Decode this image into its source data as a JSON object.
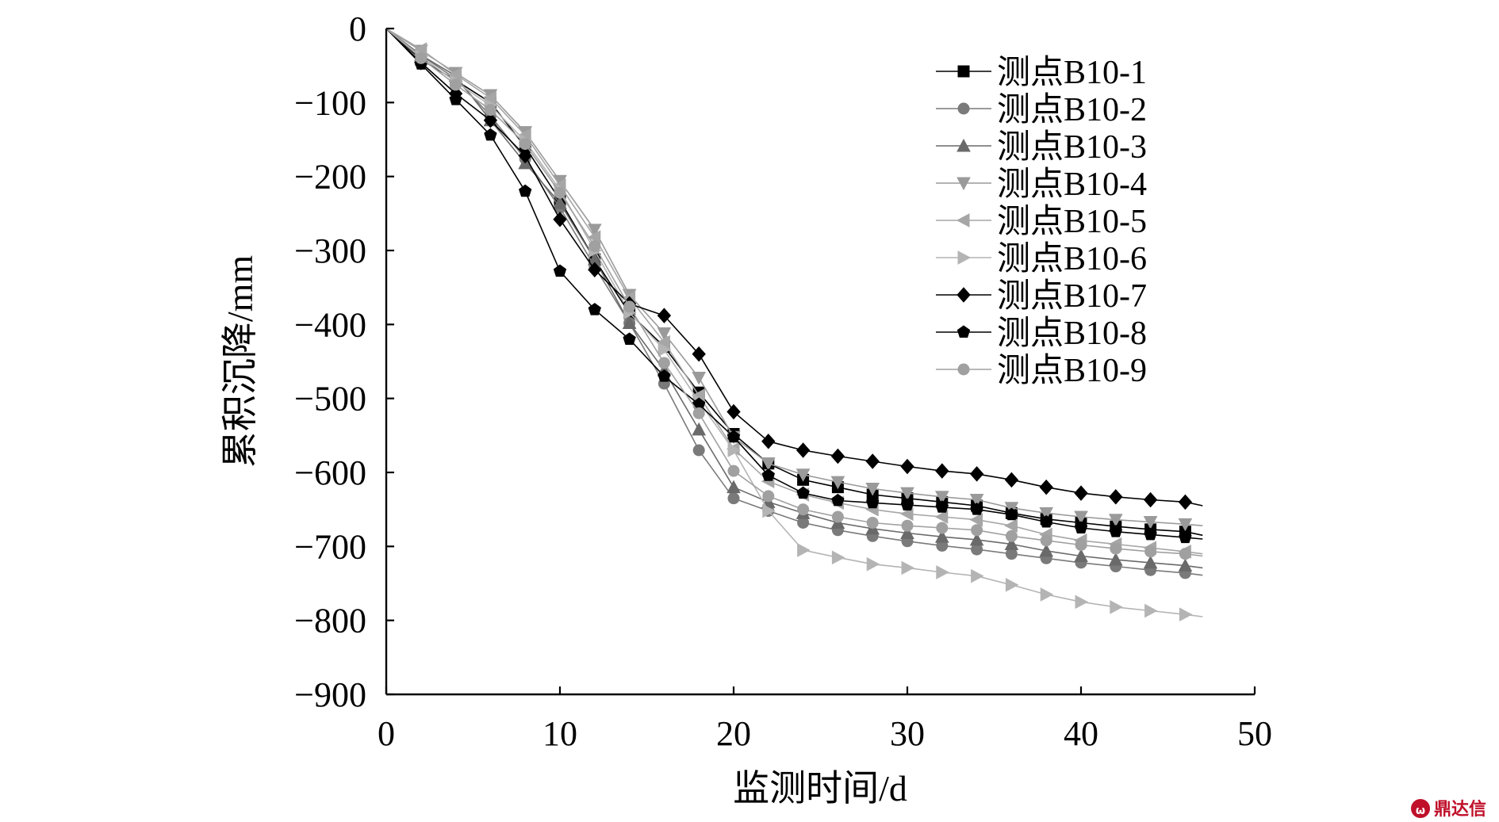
{
  "chart_data": {
    "type": "line",
    "xlabel": "监测时间/d",
    "ylabel": "累积沉降/mm",
    "xlim": [
      0,
      50
    ],
    "ylim": [
      -900,
      0
    ],
    "xticks": [
      "0",
      "10",
      "20",
      "30",
      "40",
      "50"
    ],
    "yticks": [
      "0",
      "−100",
      "−200",
      "−300",
      "−400",
      "−500",
      "−600",
      "−700",
      "−800",
      "−900"
    ],
    "grid": false,
    "legend_position": "top-right",
    "x": [
      0,
      2,
      4,
      6,
      8,
      10,
      12,
      14,
      16,
      18,
      20,
      22,
      24,
      26,
      28,
      30,
      32,
      34,
      36,
      38,
      40,
      42,
      44,
      46,
      47
    ],
    "series": [
      {
        "name": "测点B10-1",
        "marker": "square",
        "color": "#000000",
        "values": [
          0,
          -42,
          -70,
          -100,
          -160,
          -232,
          -312,
          -385,
          -430,
          -492,
          -548,
          -588,
          -610,
          -620,
          -630,
          -635,
          -640,
          -645,
          -655,
          -663,
          -668,
          -673,
          -677,
          -680,
          -685
        ]
      },
      {
        "name": "测点B10-2",
        "marker": "circle",
        "color": "#7a7a7a",
        "values": [
          0,
          -36,
          -68,
          -118,
          -176,
          -242,
          -322,
          -398,
          -480,
          -570,
          -635,
          -652,
          -668,
          -678,
          -686,
          -693,
          -699,
          -704,
          -710,
          -716,
          -722,
          -727,
          -732,
          -736,
          -739
        ]
      },
      {
        "name": "测点B10-3",
        "marker": "triangle-up",
        "color": "#6a6a6a",
        "values": [
          0,
          -36,
          -64,
          -124,
          -182,
          -236,
          -312,
          -398,
          -462,
          -542,
          -620,
          -640,
          -655,
          -668,
          -676,
          -682,
          -687,
          -691,
          -697,
          -706,
          -713,
          -718,
          -722,
          -726,
          -729
        ]
      },
      {
        "name": "测点B10-4",
        "marker": "triangle-down",
        "color": "#9a9a9a",
        "values": [
          0,
          -30,
          -60,
          -90,
          -140,
          -206,
          -272,
          -360,
          -412,
          -472,
          -552,
          -588,
          -603,
          -613,
          -622,
          -628,
          -633,
          -637,
          -648,
          -655,
          -660,
          -664,
          -667,
          -670,
          -672
        ]
      },
      {
        "name": "测点B10-5",
        "marker": "triangle-left",
        "color": "#a6a6a6",
        "values": [
          0,
          -28,
          -62,
          -94,
          -144,
          -212,
          -282,
          -364,
          -424,
          -496,
          -568,
          -612,
          -630,
          -641,
          -650,
          -656,
          -660,
          -664,
          -672,
          -684,
          -692,
          -697,
          -702,
          -707,
          -710
        ]
      },
      {
        "name": "测点B10-6",
        "marker": "triangle-right",
        "color": "#b4b4b4",
        "values": [
          0,
          -38,
          -72,
          -104,
          -152,
          -218,
          -300,
          -384,
          -434,
          -504,
          -570,
          -652,
          -705,
          -715,
          -724,
          -729,
          -735,
          -740,
          -752,
          -765,
          -775,
          -782,
          -787,
          -792,
          -795
        ]
      },
      {
        "name": "测点B10-7",
        "marker": "diamond",
        "color": "#000000",
        "values": [
          0,
          -46,
          -88,
          -124,
          -172,
          -258,
          -326,
          -372,
          -388,
          -440,
          -518,
          -558,
          -570,
          -578,
          -585,
          -592,
          -598,
          -602,
          -610,
          -620,
          -628,
          -633,
          -637,
          -640,
          -645
        ]
      },
      {
        "name": "测点B10-8",
        "marker": "pentagon",
        "color": "#000000",
        "values": [
          0,
          -48,
          -96,
          -144,
          -220,
          -328,
          -380,
          -420,
          -470,
          -508,
          -552,
          -604,
          -628,
          -638,
          -641,
          -644,
          -647,
          -650,
          -657,
          -667,
          -675,
          -680,
          -684,
          -688,
          -690
        ]
      },
      {
        "name": "测点B10-9",
        "marker": "circle",
        "color": "#a0a0a0",
        "values": [
          0,
          -40,
          -76,
          -110,
          -156,
          -222,
          -294,
          -376,
          -452,
          -520,
          -598,
          -632,
          -650,
          -660,
          -668,
          -672,
          -675,
          -678,
          -686,
          -692,
          -698,
          -703,
          -707,
          -710,
          -713
        ]
      }
    ]
  },
  "watermark": {
    "text": "鼎达信",
    "color": "#c0102a"
  }
}
